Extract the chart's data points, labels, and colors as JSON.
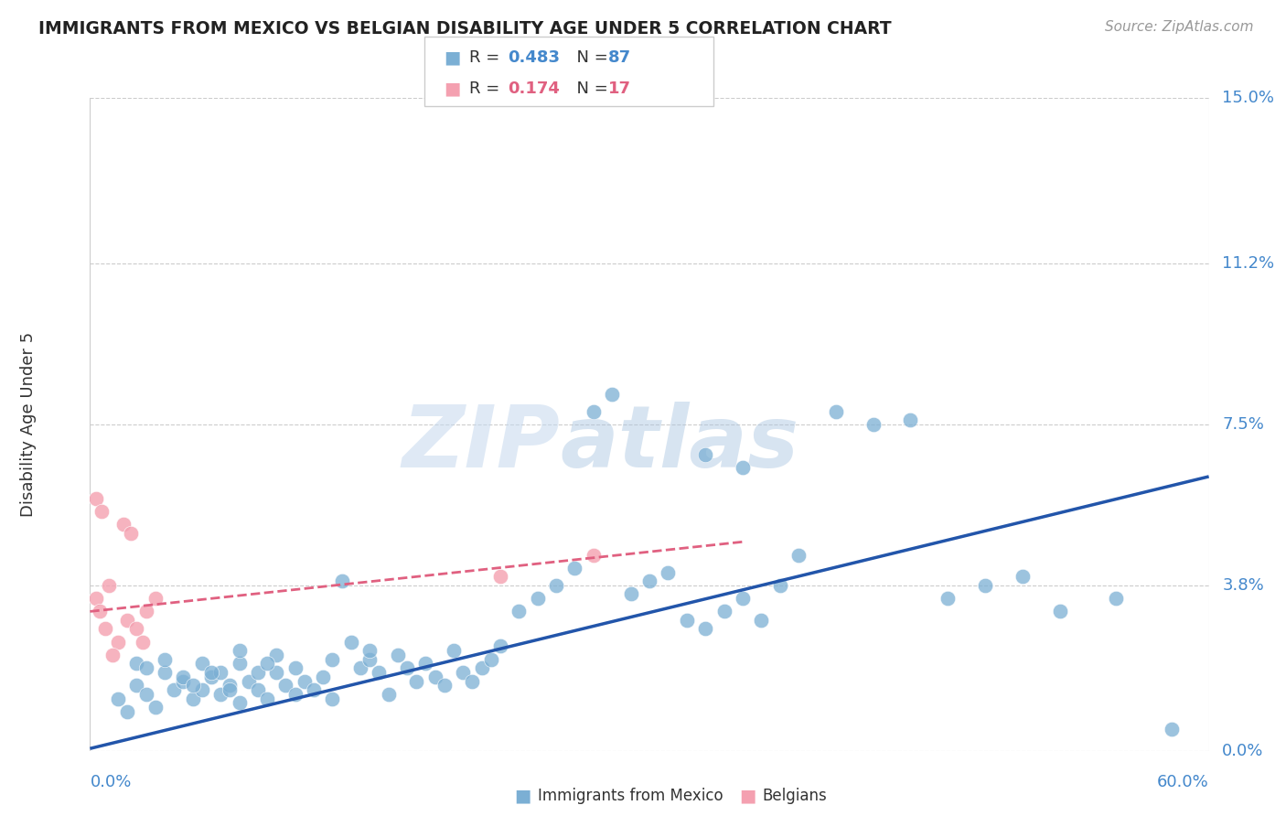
{
  "title": "IMMIGRANTS FROM MEXICO VS BELGIAN DISABILITY AGE UNDER 5 CORRELATION CHART",
  "source": "Source: ZipAtlas.com",
  "ylabel": "Disability Age Under 5",
  "ytick_labels": [
    "15.0%",
    "11.2%",
    "7.5%",
    "3.8%",
    "0.0%"
  ],
  "ytick_values": [
    15.0,
    11.2,
    7.5,
    3.8,
    0.0
  ],
  "xlim": [
    0.0,
    60.0
  ],
  "ylim": [
    0.0,
    15.0
  ],
  "blue_color": "#7bafd4",
  "pink_color": "#f4a0b0",
  "blue_line_color": "#2255aa",
  "pink_line_color": "#e06080",
  "watermark_zip": "ZIP",
  "watermark_atlas": "atlas",
  "blue_line_x": [
    0.0,
    60.0
  ],
  "blue_line_y": [
    0.05,
    6.3
  ],
  "pink_line_x": [
    0.0,
    35.0
  ],
  "pink_line_y": [
    3.2,
    4.8
  ],
  "blue_scatter_x": [
    1.5,
    2.0,
    2.5,
    3.0,
    3.5,
    4.0,
    4.5,
    5.0,
    5.5,
    6.0,
    6.5,
    7.0,
    7.5,
    8.0,
    8.5,
    9.0,
    9.5,
    10.0,
    10.5,
    11.0,
    11.5,
    12.0,
    12.5,
    13.0,
    13.5,
    14.0,
    14.5,
    15.0,
    15.5,
    16.0,
    16.5,
    17.0,
    17.5,
    18.0,
    18.5,
    19.0,
    19.5,
    20.0,
    20.5,
    21.0,
    21.5,
    22.0,
    23.0,
    24.0,
    25.0,
    26.0,
    27.0,
    28.0,
    29.0,
    30.0,
    31.0,
    32.0,
    33.0,
    34.0,
    35.0,
    36.0,
    38.0,
    40.0,
    42.0,
    44.0,
    46.0,
    48.0,
    50.0,
    52.0,
    55.0,
    58.0,
    33.0,
    35.0,
    37.0,
    8.0,
    9.0,
    10.0,
    2.5,
    3.0,
    4.0,
    5.0,
    6.0,
    7.0,
    8.0,
    5.5,
    6.5,
    7.5,
    9.5,
    11.0,
    13.0,
    15.0
  ],
  "blue_scatter_y": [
    1.2,
    0.9,
    1.5,
    1.3,
    1.0,
    1.8,
    1.4,
    1.6,
    1.2,
    1.4,
    1.7,
    1.3,
    1.5,
    1.1,
    1.6,
    1.4,
    1.2,
    1.8,
    1.5,
    1.3,
    1.6,
    1.4,
    1.7,
    1.2,
    3.9,
    2.5,
    1.9,
    2.1,
    1.8,
    1.3,
    2.2,
    1.9,
    1.6,
    2.0,
    1.7,
    1.5,
    2.3,
    1.8,
    1.6,
    1.9,
    2.1,
    2.4,
    3.2,
    3.5,
    3.8,
    4.2,
    7.8,
    8.2,
    3.6,
    3.9,
    4.1,
    3.0,
    2.8,
    3.2,
    3.5,
    3.0,
    4.5,
    7.8,
    7.5,
    7.6,
    3.5,
    3.8,
    4.0,
    3.2,
    3.5,
    0.5,
    6.8,
    6.5,
    3.8,
    2.0,
    1.8,
    2.2,
    2.0,
    1.9,
    2.1,
    1.7,
    2.0,
    1.8,
    2.3,
    1.5,
    1.8,
    1.4,
    2.0,
    1.9,
    2.1,
    2.3
  ],
  "pink_scatter_x": [
    0.3,
    0.5,
    0.8,
    1.0,
    1.5,
    2.0,
    2.5,
    3.0,
    3.5,
    0.3,
    0.6,
    1.2,
    1.8,
    2.2,
    2.8,
    22.0,
    27.0
  ],
  "pink_scatter_y": [
    3.5,
    3.2,
    2.8,
    3.8,
    2.5,
    3.0,
    2.8,
    3.2,
    3.5,
    5.8,
    5.5,
    2.2,
    5.2,
    5.0,
    2.5,
    4.0,
    4.5
  ]
}
